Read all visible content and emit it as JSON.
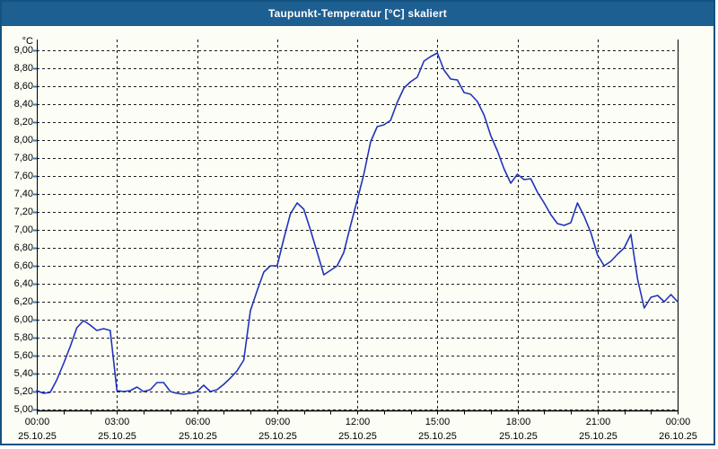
{
  "window": {
    "title": "Taupunkt-Temperatur [°C] skaliert",
    "colors": {
      "title_bar": "#1E5F91",
      "window_border": "#14527F",
      "plot_background": "#FCFDF5",
      "grid_line": "#1A1A1A",
      "axis_line": "#000000",
      "y_tick_blue": "#3A7CC0",
      "series_line": "#2233BB",
      "title_text": "#FFFFFF",
      "axis_text": "#000000"
    }
  },
  "chart_data": {
    "type": "line",
    "title": "Taupunkt-Temperatur [°C] skaliert",
    "ylabel_unit": "°C",
    "ylim": [
      5.0,
      9.0
    ],
    "ytick_step": 0.2,
    "grid": "dashed",
    "legend": "none",
    "x_range_minutes": [
      0,
      1440
    ],
    "xtick_interval_minutes": 180,
    "minor_xtick_interval_minutes": 60,
    "ytick_labels": [
      "9,00",
      "8,80",
      "8,60",
      "8,40",
      "8,20",
      "8,00",
      "7,80",
      "7,60",
      "7,40",
      "7,20",
      "7,00",
      "6,80",
      "6,60",
      "6,40",
      "6,20",
      "6,00",
      "5,80",
      "5,60",
      "5,40",
      "5,20",
      "5,00"
    ],
    "xtick_labels": [
      {
        "time": "00:00",
        "date": "25.10.25"
      },
      {
        "time": "03:00",
        "date": "25.10.25"
      },
      {
        "time": "06:00",
        "date": "25.10.25"
      },
      {
        "time": "09:00",
        "date": "25.10.25"
      },
      {
        "time": "12:00",
        "date": "25.10.25"
      },
      {
        "time": "15:00",
        "date": "25.10.25"
      },
      {
        "time": "18:00",
        "date": "25.10.25"
      },
      {
        "time": "21:00",
        "date": "25.10.25"
      },
      {
        "time": "00:00",
        "date": "26.10.25"
      }
    ],
    "series": [
      {
        "name": "Taupunkt-Temperatur",
        "color": "#2233BB",
        "points_minute_value": [
          [
            0,
            5.21
          ],
          [
            15,
            5.18
          ],
          [
            30,
            5.19
          ],
          [
            45,
            5.33
          ],
          [
            60,
            5.51
          ],
          [
            75,
            5.7
          ],
          [
            90,
            5.91
          ],
          [
            105,
            5.99
          ],
          [
            120,
            5.94
          ],
          [
            135,
            5.88
          ],
          [
            150,
            5.9
          ],
          [
            165,
            5.88
          ],
          [
            180,
            5.21
          ],
          [
            195,
            5.2
          ],
          [
            210,
            5.21
          ],
          [
            225,
            5.25
          ],
          [
            240,
            5.2
          ],
          [
            255,
            5.22
          ],
          [
            270,
            5.3
          ],
          [
            285,
            5.3
          ],
          [
            300,
            5.2
          ],
          [
            315,
            5.18
          ],
          [
            330,
            5.17
          ],
          [
            345,
            5.18
          ],
          [
            360,
            5.2
          ],
          [
            375,
            5.27
          ],
          [
            390,
            5.2
          ],
          [
            405,
            5.22
          ],
          [
            420,
            5.28
          ],
          [
            435,
            5.35
          ],
          [
            450,
            5.43
          ],
          [
            465,
            5.55
          ],
          [
            480,
            6.1
          ],
          [
            495,
            6.32
          ],
          [
            510,
            6.53
          ],
          [
            525,
            6.6
          ],
          [
            540,
            6.6
          ],
          [
            555,
            6.9
          ],
          [
            570,
            7.18
          ],
          [
            585,
            7.3
          ],
          [
            600,
            7.23
          ],
          [
            615,
            7.0
          ],
          [
            630,
            6.75
          ],
          [
            645,
            6.5
          ],
          [
            660,
            6.55
          ],
          [
            675,
            6.6
          ],
          [
            690,
            6.75
          ],
          [
            705,
            7.05
          ],
          [
            720,
            7.33
          ],
          [
            735,
            7.62
          ],
          [
            750,
            7.98
          ],
          [
            765,
            8.15
          ],
          [
            780,
            8.17
          ],
          [
            795,
            8.22
          ],
          [
            810,
            8.42
          ],
          [
            825,
            8.58
          ],
          [
            840,
            8.65
          ],
          [
            855,
            8.7
          ],
          [
            870,
            8.88
          ],
          [
            885,
            8.93
          ],
          [
            900,
            8.97
          ],
          [
            915,
            8.78
          ],
          [
            930,
            8.68
          ],
          [
            945,
            8.67
          ],
          [
            960,
            8.53
          ],
          [
            975,
            8.51
          ],
          [
            990,
            8.43
          ],
          [
            1005,
            8.28
          ],
          [
            1020,
            8.05
          ],
          [
            1035,
            7.88
          ],
          [
            1050,
            7.68
          ],
          [
            1065,
            7.52
          ],
          [
            1080,
            7.62
          ],
          [
            1095,
            7.56
          ],
          [
            1110,
            7.57
          ],
          [
            1125,
            7.42
          ],
          [
            1140,
            7.3
          ],
          [
            1155,
            7.17
          ],
          [
            1170,
            7.07
          ],
          [
            1185,
            7.05
          ],
          [
            1200,
            7.08
          ],
          [
            1215,
            7.3
          ],
          [
            1230,
            7.15
          ],
          [
            1245,
            6.97
          ],
          [
            1260,
            6.72
          ],
          [
            1275,
            6.6
          ],
          [
            1290,
            6.65
          ],
          [
            1305,
            6.73
          ],
          [
            1320,
            6.8
          ],
          [
            1335,
            6.95
          ],
          [
            1350,
            6.45
          ],
          [
            1365,
            6.13
          ],
          [
            1380,
            6.25
          ],
          [
            1395,
            6.27
          ],
          [
            1410,
            6.2
          ],
          [
            1425,
            6.28
          ],
          [
            1440,
            6.2
          ]
        ]
      }
    ]
  }
}
